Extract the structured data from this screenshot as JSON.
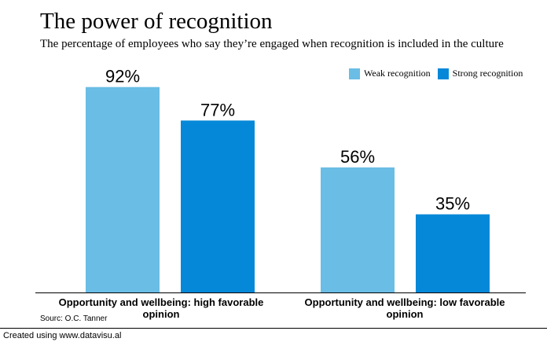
{
  "chart_data": {
    "type": "bar",
    "title": "The power of recognition",
    "subtitle": "The percentage of employees who say they’re engaged when recognition is included in the culture",
    "categories": [
      "Opportunity and wellbeing: high favorable opinion",
      "Opportunity and wellbeing: low favorable opinion"
    ],
    "series": [
      {
        "name": "Weak recognition",
        "values": [
          92,
          56
        ],
        "color": "#6ABDE5",
        "labels": [
          "92%",
          "56%"
        ]
      },
      {
        "name": "Strong recognition",
        "values": [
          77,
          35
        ],
        "color": "#0588D8",
        "labels": [
          "77%",
          "35%"
        ]
      }
    ],
    "ylim": [
      0,
      100
    ],
    "xlabel": "",
    "ylabel": "",
    "grid": false,
    "legend": "top-right",
    "value_suffix": "%"
  },
  "source": "Sourc: O.C. Tanner",
  "footer": "Created using www.datavisu.al"
}
